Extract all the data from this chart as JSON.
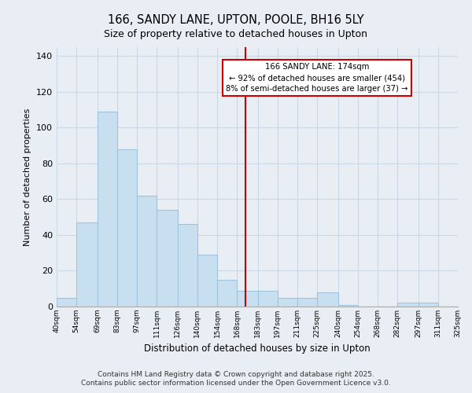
{
  "title": "166, SANDY LANE, UPTON, POOLE, BH16 5LY",
  "subtitle": "Size of property relative to detached houses in Upton",
  "xlabel": "Distribution of detached houses by size in Upton",
  "ylabel": "Number of detached properties",
  "bar_color": "#c8dff0",
  "bar_edge_color": "#a0c4de",
  "background_color": "#e8eef4",
  "plot_bg_color": "#e8eef4",
  "grid_color": "#ccd9e5",
  "vline_x": 174,
  "vline_color": "#cc0000",
  "bin_edges": [
    40,
    54,
    69,
    83,
    97,
    111,
    126,
    140,
    154,
    168,
    183,
    197,
    211,
    225,
    240,
    254,
    268,
    282,
    297,
    311,
    325
  ],
  "bin_heights": [
    5,
    47,
    109,
    88,
    62,
    54,
    46,
    29,
    15,
    9,
    9,
    5,
    5,
    8,
    1,
    0,
    0,
    2,
    2,
    0
  ],
  "tick_labels": [
    "40sqm",
    "54sqm",
    "69sqm",
    "83sqm",
    "97sqm",
    "111sqm",
    "126sqm",
    "140sqm",
    "154sqm",
    "168sqm",
    "183sqm",
    "197sqm",
    "211sqm",
    "225sqm",
    "240sqm",
    "254sqm",
    "268sqm",
    "282sqm",
    "297sqm",
    "311sqm",
    "325sqm"
  ],
  "annotation_title": "166 SANDY LANE: 174sqm",
  "annotation_line1": "← 92% of detached houses are smaller (454)",
  "annotation_line2": "8% of semi-detached houses are larger (37) →",
  "footer_line1": "Contains HM Land Registry data © Crown copyright and database right 2025.",
  "footer_line2": "Contains public sector information licensed under the Open Government Licence v3.0.",
  "ylim": [
    0,
    145
  ],
  "yticks": [
    0,
    20,
    40,
    60,
    80,
    100,
    120,
    140
  ]
}
